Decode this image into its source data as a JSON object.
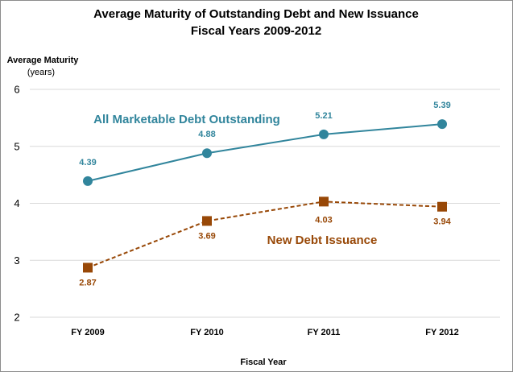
{
  "chart_data": {
    "type": "line",
    "title": "Average Maturity of Outstanding Debt and New Issuance",
    "subtitle": "Fiscal Years 2009-2012",
    "ylabel": "Average Maturity",
    "ylabel_unit": "(years)",
    "xlabel": "Fiscal Year",
    "ylim": [
      2,
      6
    ],
    "yticks": [
      "2",
      "3",
      "4",
      "5",
      "6"
    ],
    "grid": true,
    "categories": [
      "FY 2009",
      "FY 2010",
      "FY 2011",
      "FY 2012"
    ],
    "series": [
      {
        "name": "All Marketable Debt Outstanding",
        "values": [
          4.39,
          4.88,
          5.21,
          5.39
        ],
        "labels": [
          "4.39",
          "4.88",
          "5.21",
          "5.39"
        ],
        "color": "#31859c",
        "line_style": "solid",
        "marker": "circle"
      },
      {
        "name": "New Debt Issuance",
        "values": [
          2.87,
          3.69,
          4.03,
          3.94
        ],
        "labels": [
          "2.87",
          "3.69",
          "4.03",
          "3.94"
        ],
        "color": "#984807",
        "line_style": "dashed",
        "marker": "square"
      }
    ]
  }
}
